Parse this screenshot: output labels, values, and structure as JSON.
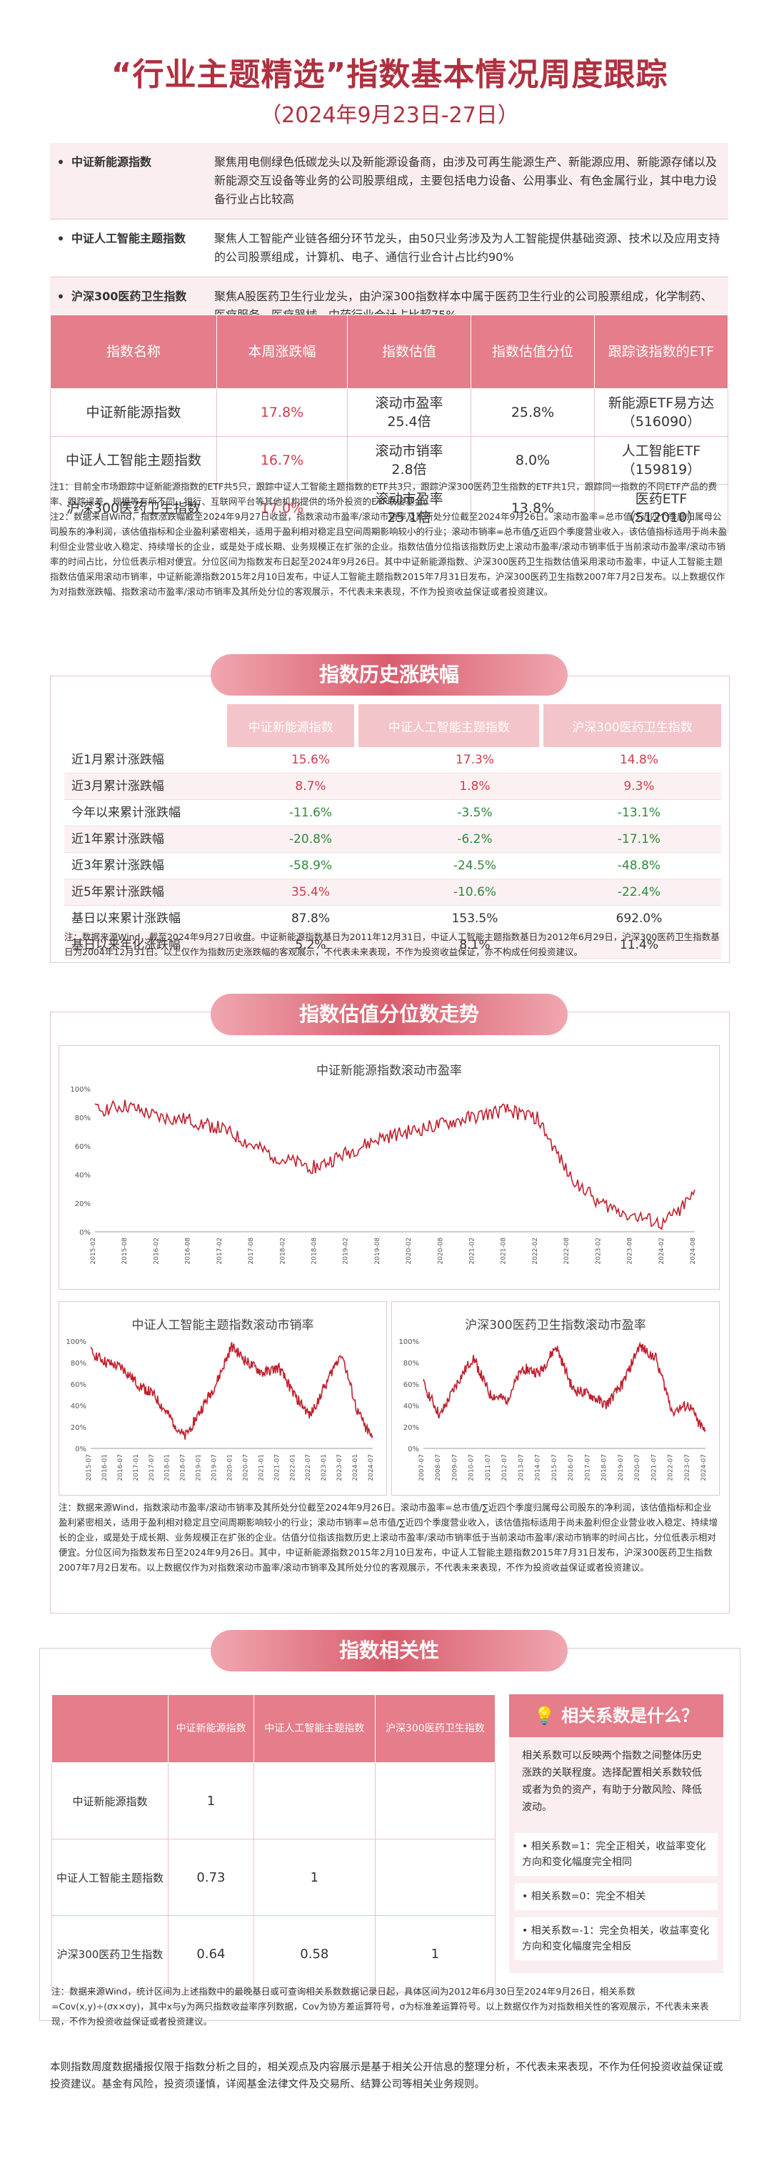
{
  "header": {
    "title": "“行业主题精选”指数基本情况周度跟踪",
    "subtitle": "（2024年9月23日-27日）"
  },
  "intro": [
    {
      "name": "中证新能源指数",
      "desc": "聚焦用电侧绿色低碳龙头以及新能源设备商，由涉及可再生能源生产、新能源应用、新能源存储以及新能源交互设备等业务的公司股票组成，主要包括电力设备、公用事业、有色金属行业，其中电力设备行业占比较高"
    },
    {
      "name": "中证人工智能主题指数",
      "desc": "聚焦人工智能产业链各细分环节龙头，由50只业务涉及为人工智能提供基础资源、技术以及应用支持的公司股票组成，计算机、电子、通信行业合计占比约90%"
    },
    {
      "name": "沪深300医药卫生指数",
      "desc": "聚焦A股医药卫生行业龙头，由沪深300指数样本中属于医药卫生行业的公司股票组成，化学制药、医疗服务、医疗器械、中药行业合计占比超75%"
    }
  ],
  "table1": {
    "headers": [
      "指数名称",
      "本周涨跌幅",
      "指数估值",
      "指数估值分位",
      "跟踪该指数的ETF"
    ],
    "rows": [
      {
        "name": "中证新能源指数",
        "change": "17.8%",
        "val_label": "滚动市盈率",
        "val": "25.4倍",
        "pct": "25.8%",
        "etf": "新能源ETF易方达",
        "code": "（516090）"
      },
      {
        "name": "中证人工智能主题指数",
        "change": "16.7%",
        "val_label": "滚动市销率",
        "val": "2.8倍",
        "pct": "8.0%",
        "etf": "人工智能ETF",
        "code": "（159819）"
      },
      {
        "name": "沪深300医药卫生指数",
        "change": "17.0%",
        "val_label": "滚动市盈率",
        "val": "25.1倍",
        "pct": "13.8%",
        "etf": "医药ETF",
        "code": "（512010）"
      }
    ],
    "note1": "注1：目前全市场跟踪中证新能源指数的ETF共5只，跟踪中证人工智能主题指数的ETF共3只，跟踪沪深300医药卫生指数的ETF共1只，跟踪同一指数的不同ETF产品的费率、跟踪误差、规模等有所不同。银行、互联网平台等其他机构提供的场外投资的ETF联接基金。",
    "note2": "注2：数据来自Wind，指数涨跌幅截至2024年9月27日收盘，指数滚动市盈率/滚动市销率及其所处分位截至2024年9月26日。滚动市盈率=总市值/∑近四个季度归属母公司股东的净利润，该估值指标和企业盈利紧密相关，适用于盈利相对稳定且空间周期影响较小的行业；滚动市销率=总市值/∑近四个季度营业收入，该估值指标适用于尚未盈利但企业营业收入稳定、持续增长的企业，或是处于成长期、业务规模正在扩张的企业。指数估值分位指该指数历史上滚动市盈率/滚动市销率低于当前滚动市盈率/滚动市销率的时间占比，分位低表示相对便宜。分位区间为指数发布日起至2024年9月26日。其中中证新能源指数、沪深300医药卫生指数估值采用滚动市盈率，中证人工智能主题指数估值采用滚动市销率，中证新能源指数2015年2月10日发布，中证人工智能主题指数2015年7月31日发布，沪深300医药卫生指数2007年7月2日发布。以上数据仅作为对指数涨跌幅、指数滚动市盈率/滚动市销率及其所处分位的客观展示，不代表未来表现，不作为投资收益保证或者投资建议。"
  },
  "section2": {
    "banner": "指数历史涨跌幅",
    "headers": [
      "中证新能源指数",
      "中证人工智能主题指数",
      "沪深300医药卫生指数"
    ],
    "rows": [
      {
        "label": "近1月累计涨跌幅",
        "v": [
          "15.6%",
          "17.3%",
          "14.8%"
        ]
      },
      {
        "label": "近3月累计涨跌幅",
        "v": [
          "8.7%",
          "1.8%",
          "9.3%"
        ]
      },
      {
        "label": "今年以来累计涨跌幅",
        "v": [
          "-11.6%",
          "-3.5%",
          "-13.1%"
        ]
      },
      {
        "label": "近1年累计涨跌幅",
        "v": [
          "-20.8%",
          "-6.2%",
          "-17.1%"
        ]
      },
      {
        "label": "近3年累计涨跌幅",
        "v": [
          "-58.9%",
          "-24.5%",
          "-48.8%"
        ]
      },
      {
        "label": "近5年累计涨跌幅",
        "v": [
          "35.4%",
          "-10.6%",
          "-22.4%"
        ]
      },
      {
        "label": "基日以来累计涨跌幅",
        "v": [
          "87.8%",
          "153.5%",
          "692.0%"
        ]
      },
      {
        "label": "基日以来年化涨跌幅",
        "v": [
          "5.2%",
          "8.1%",
          "11.4%"
        ]
      }
    ],
    "note": "注：数据来源Wind，截至2024年9月27日收盘。中证新能源指数基日为2011年12月31日，中证人工智能主题指数基日为2012年6月29日，沪深300医药卫生指数基日为2004年12月31日。以上仅作为指数历史涨跌幅的客观展示，不代表未来表现，不作为投资收益保证，亦不构成任何投资建议。"
  },
  "section3": {
    "banner": "指数估值分位数走势",
    "chart1_title": "中证新能源指数滚动市盈率",
    "chart2_title": "中证人工智能主题指数滚动市销率",
    "chart3_title": "沪深300医药卫生指数滚动市盈率",
    "note": "注：数据来源Wind，指数滚动市盈率/滚动市销率及其所处分位截至2024年9月26日。滚动市盈率=总市值/∑近四个季度归属母公司股东的净利润，该估值指标和企业盈利紧密相关，适用于盈利相对稳定且空间周期影响较小的行业；滚动市销率=总市值/∑近四个季度营业收入，该估值指标适用于尚未盈利但企业营业收入稳定、持续增长的企业，或是处于成长期、业务规模正在扩张的企业。估值分位指该指数历史上滚动市盈率/滚动市销率低于当前滚动市盈率/滚动市销率的时间占比，分位低表示相对便宜。分位区间为指数发布日至2024年9月26日。其中，中证新能源指数2015年2月10日发布，中证人工智能主题指数2015年7月31日发布，沪深300医药卫生指数2007年7月2日发布。以上数据仅作为对指数滚动市盈率/滚动市销率及其所处分位的客观展示，不代表未来表现，不作为投资收益保证或者投资建议。"
  },
  "section4": {
    "banner": "指数相关性",
    "headers": [
      "中证新能源指数",
      "中证人工智能主题指数",
      "沪深300医药卫生指数"
    ],
    "rows": [
      {
        "label": "中证新能源指数",
        "v": [
          "1",
          "",
          ""
        ]
      },
      {
        "label": "中证人工智能主题指数",
        "v": [
          "0.73",
          "1",
          ""
        ]
      },
      {
        "label": "沪深300医药卫生指数",
        "v": [
          "0.64",
          "0.58",
          "1"
        ]
      }
    ],
    "side_title": "相关系数是什么？",
    "side_desc": "相关系数可以反映两个指数之间整体历史涨跌的关联程度。选择配置相关系数较低或者为负的资产，有助于分散风险、降低波动。",
    "side_items": [
      "相关系数=1：完全正相关，收益率变化方向和变化幅度完全相同",
      "相关系数=0：完全不相关",
      "相关系数=-1：完全负相关，收益率变化方向和变化幅度完全相反"
    ],
    "note": "注：数据来源Wind，统计区间为上述指数中的最晚基日或可查询相关系数数据记录日起，具体区间为2012年6月30日至2024年9月26日，相关系数=Cov(x,y)÷(σx×σy)，其中x与y为两只指数收益率序列数据，Cov为协方差运算符号，σ为标准差运算符号。以上数据仅作为对指数相关性的客观展示，不代表未来表现，不作为投资收益保证或者投资建议。"
  },
  "footer": "本则指数周度数据播报仅限于指数分析之目的，相关观点及内容展示是基于相关公开信息的整理分析，不代表未来表现，不作为任何投资收益保证或投资建议。基金有风险，投资须谨慎，详阅基金法律文件及交易所、结算公司等相关业务规则。",
  "chart_data": [
    {
      "type": "line",
      "title": "中证新能源指数滚动市盈率",
      "ylim": [
        0,
        100
      ],
      "yticks": [
        "0%",
        "20%",
        "40%",
        "60%",
        "80%",
        "100%"
      ],
      "x": [
        "2015-02",
        "2015-08",
        "2016-02",
        "2016-08",
        "2017-02",
        "2017-08",
        "2018-02",
        "2018-08",
        "2019-02",
        "2019-08",
        "2020-02",
        "2020-08",
        "2021-02",
        "2021-08",
        "2022-02",
        "2022-08",
        "2023-02",
        "2023-08",
        "2024-02",
        "2024-08"
      ],
      "values": [
        85,
        88,
        80,
        78,
        72,
        60,
        50,
        45,
        55,
        65,
        70,
        75,
        80,
        85,
        80,
        40,
        20,
        12,
        5,
        26
      ]
    },
    {
      "type": "line",
      "title": "中证人工智能主题指数滚动市销率",
      "ylim": [
        0,
        100
      ],
      "yticks": [
        "0%",
        "20%",
        "40%",
        "60%",
        "80%",
        "100%"
      ],
      "x": [
        "2015-07",
        "2016-01",
        "2016-07",
        "2017-01",
        "2017-07",
        "2018-01",
        "2018-07",
        "2019-01",
        "2019-07",
        "2020-01",
        "2020-07",
        "2021-01",
        "2021-07",
        "2022-01",
        "2022-07",
        "2023-01",
        "2023-07",
        "2024-01",
        "2024-07"
      ],
      "values": [
        90,
        80,
        75,
        60,
        50,
        30,
        10,
        35,
        60,
        95,
        80,
        70,
        75,
        50,
        30,
        60,
        90,
        35,
        8
      ]
    },
    {
      "type": "line",
      "title": "沪深300医药卫生指数滚动市盈率",
      "ylim": [
        0,
        100
      ],
      "yticks": [
        "0%",
        "20%",
        "40%",
        "60%",
        "80%",
        "100%"
      ],
      "x": [
        "2007-07",
        "2008-07",
        "2009-07",
        "2010-07",
        "2011-07",
        "2012-07",
        "2013-07",
        "2014-07",
        "2015-07",
        "2016-07",
        "2017-07",
        "2018-07",
        "2019-07",
        "2020-07",
        "2021-07",
        "2022-07",
        "2023-07",
        "2024-07"
      ],
      "values": [
        60,
        30,
        60,
        85,
        50,
        45,
        75,
        70,
        95,
        55,
        50,
        40,
        60,
        95,
        85,
        35,
        40,
        14
      ]
    }
  ]
}
